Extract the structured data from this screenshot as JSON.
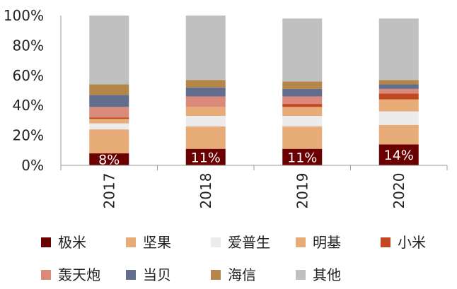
{
  "chart_data": {
    "type": "bar",
    "stacked": true,
    "categories": [
      "2017",
      "2018",
      "2019",
      "2020"
    ],
    "ylim": [
      0,
      100
    ],
    "yticks": [
      "0%",
      "20%",
      "40%",
      "60%",
      "80%",
      "100%"
    ],
    "series": [
      {
        "name": "极米",
        "color": "#6b0000",
        "values": [
          8,
          11,
          11,
          14
        ]
      },
      {
        "name": "坚果",
        "color": "#e8ac78",
        "values": [
          16,
          15,
          15,
          13
        ]
      },
      {
        "name": "爱普生",
        "color": "#ececec",
        "values": [
          4,
          7,
          7,
          9
        ]
      },
      {
        "name": "明基",
        "color": "#e8ac78",
        "values": [
          3,
          6,
          6,
          8
        ]
      },
      {
        "name": "小米",
        "color": "#c0471f",
        "values": [
          1,
          0,
          2,
          4
        ]
      },
      {
        "name": "轰天炮",
        "color": "#d98a7a",
        "values": [
          7,
          7,
          5,
          3
        ]
      },
      {
        "name": "当贝",
        "color": "#636e8f",
        "values": [
          8,
          6,
          5,
          3
        ]
      },
      {
        "name": "海信",
        "color": "#b5864a",
        "values": [
          7,
          5,
          5,
          3
        ]
      },
      {
        "name": "其他",
        "color": "#c0c0c0",
        "values": [
          46,
          43,
          42,
          41
        ]
      }
    ],
    "data_labels": [
      "8%",
      "11%",
      "11%",
      "14%"
    ],
    "legend_position": "bottom"
  }
}
